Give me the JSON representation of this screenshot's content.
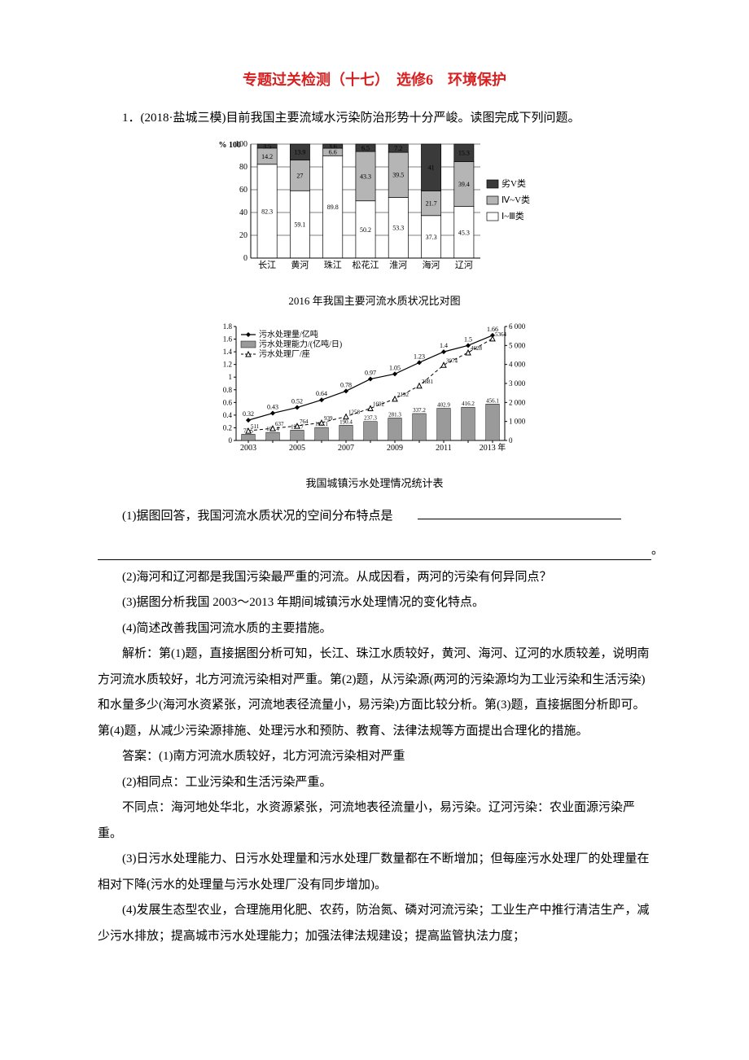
{
  "title": "专题过关检测（十七）　选修6　环境保护",
  "q1_intro": "1．(2018·盐城三模)目前我国主要流域水污染防治形势十分严峻。读图完成下列问题。",
  "bar_chart": {
    "title": "2016 年我国主要河流水质状况比对图",
    "y_label": "%",
    "y_ticks": [
      0,
      20,
      40,
      60,
      80,
      100
    ],
    "categories": [
      "长江",
      "黄河",
      "珠江",
      "松花江",
      "淮河",
      "海河",
      "辽河"
    ],
    "legend": {
      "worse_v": "劣V类",
      "iv_v": "Ⅳ~V类",
      "i_iii": "Ⅰ~Ⅲ类"
    },
    "colors": {
      "worse_v": "#3a3a3a",
      "iv_v": "#b5b5b5",
      "i_iii": "#ffffff",
      "border": "#000000"
    },
    "series": {
      "i_iii": [
        82.3,
        59.1,
        89.8,
        50.2,
        53.3,
        37.3,
        45.3
      ],
      "iv_v": [
        14.2,
        27.0,
        6.6,
        43.3,
        39.5,
        21.7,
        39.4
      ],
      "worse_v": [
        3.5,
        13.9,
        3.6,
        6.5,
        7.2,
        41.0,
        15.3
      ]
    },
    "bar_width": 0.6
  },
  "combo_chart": {
    "title": "我国城镇污水处理情况统计表",
    "years": [
      "2003",
      "2004",
      "2005",
      "2006",
      "2007",
      "2008",
      "2009",
      "2010",
      "2011",
      "2012",
      "2013"
    ],
    "legend": {
      "vol": "污水处理量/亿吨",
      "cap": "污水处理能力/(亿吨/日)",
      "plants": "污水处理厂/座"
    },
    "proc_vol": [
      0.32,
      0.43,
      0.52,
      0.64,
      0.78,
      0.97,
      1.05,
      1.23,
      1.4,
      1.5,
      1.66
    ],
    "proc_cap": [
      77.5,
      101.4,
      128.7,
      163.1,
      190.4,
      237.3,
      281.3,
      337.2,
      402.9,
      416.2,
      456.1
    ],
    "plants": [
      511,
      637,
      764,
      939,
      1258,
      1692,
      2192,
      2881,
      3974,
      4628,
      5364
    ],
    "left_axis": {
      "ticks": [
        0,
        0.2,
        0.4,
        0.6,
        0.8,
        1.0,
        1.2,
        1.4,
        1.6,
        1.8
      ]
    },
    "right_axis": {
      "ticks": [
        0,
        1000,
        2000,
        3000,
        4000,
        5000,
        6000
      ],
      "labels": [
        "0",
        "1 000",
        "2 000",
        "3 000",
        "4 000",
        "5 000",
        "6 000"
      ]
    },
    "years_shown": [
      "2003",
      "",
      "2005",
      "",
      "2007",
      "",
      "2009",
      "",
      "2011",
      "",
      "2013 年"
    ],
    "colors": {
      "vol": "#000000",
      "cap": "#9a9a9a",
      "plants": "#000000"
    }
  },
  "q1_1_prefix": "(1)据图回答，我国河流水质状况的空间分布特点是",
  "q1_2": "(2)海河和辽河都是我国污染最严重的河流。从成因看，两河的污染有何异同点？",
  "q1_3": "(3)据图分析我国 2003～2013 年期间城镇污水处理情况的变化特点。",
  "q1_4": "(4)简述改善我国河流水质的主要措施。",
  "expl_1": "解析：第(1)题，直接据图分析可知，长江、珠江水质较好，黄河、海河、辽河的水质较差，说明南方河流水质较好，北方河流污染相对严重。第(2)题，从污染源(两河的污染源均为工业污染和生活污染)和水量多少(海河水资紧张，河流地表径流量小，易污染)方面比较分析。第(3)题，直接据图分析即可。第(4)题，从减少污染源排施、处理污水和预防、教育、法律法规等方面提出合理化的措施。",
  "ans_1": "答案：(1)南方河流水质较好，北方河流污染相对严重",
  "ans_2": "(2)相同点：工业污染和生活污染严重。",
  "ans_2b": "不同点：海河地处华北，水资源紧张，河流地表径流量小，易污染。辽河污染：农业面源污染严重。",
  "ans_3": "(3)日污水处理能力、日污水处理量和污水处理厂数量都在不断增加；但每座污水处理厂的处理量在相对下降(污水的处理量与污水处理厂没有同步增加)。",
  "ans_4": "(4)发展生态型农业，合理施用化肥、农药，防治氮、磷对河流污染；工业生产中推行清洁生产，减少污水排放；提高城市污水处理能力；加强法律法规建设；提高监管执法力度；"
}
